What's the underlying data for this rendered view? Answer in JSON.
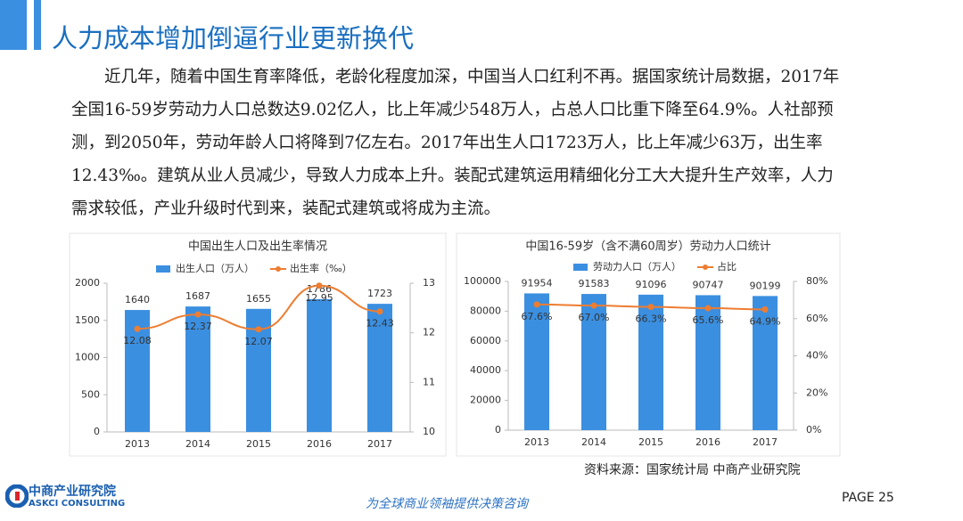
{
  "header": {
    "title": "人力成本增加倒逼行业更新换代"
  },
  "body": {
    "text": "近几年，随着中国生育率降低，老龄化程度加深，中国当人口红利不再。据国家统计局数据，2017年全国16-59岁劳动力人口总数达9.02亿人，比上年减少548万人，占总人口比重下降至64.9%。人社部预测，到2050年，劳动年龄人口将降到7亿左右。2017年出生人口1723万人，比上年减少63万，出生率12.43‰。建筑从业人员减少，导致人力成本上升。装配式建筑运用精细化分工大大提升生产效率，人力需求较低，产业升级时代到来，装配式建筑或将成为主流。"
  },
  "chart_data": [
    {
      "type": "combo",
      "title": "中国出生人口及出生率情况",
      "categories": [
        "2013",
        "2014",
        "2015",
        "2016",
        "2017"
      ],
      "series": [
        {
          "name": "出生人口（万人）",
          "type": "bar",
          "color": "#3b8fe0",
          "values": [
            1640,
            1687,
            1655,
            1786,
            1723
          ]
        },
        {
          "name": "出生率（‰）",
          "type": "line",
          "axis": "y2",
          "color": "#ed7d31",
          "values": [
            12.08,
            12.37,
            12.07,
            12.95,
            12.43
          ]
        }
      ],
      "ylim": [
        0,
        2000
      ],
      "yticks": [
        0,
        500,
        1000,
        1500,
        2000
      ],
      "y2lim": [
        10,
        13
      ],
      "y2ticks": [
        10,
        11,
        12,
        13
      ]
    },
    {
      "type": "combo",
      "title": "中国16-59岁（含不满60周岁）劳动力人口统计",
      "categories": [
        "2013",
        "2014",
        "2015",
        "2016",
        "2017"
      ],
      "series": [
        {
          "name": "劳动力人口（万人）",
          "type": "bar",
          "color": "#3b8fe0",
          "values": [
            91954,
            91583,
            91096,
            90747,
            90199
          ]
        },
        {
          "name": "占比",
          "type": "line",
          "axis": "y2",
          "color": "#ed7d31",
          "values": [
            67.6,
            67.0,
            66.3,
            65.6,
            64.9
          ],
          "value_labels": [
            "67.6%",
            "67.0%",
            "66.3%",
            "65.6%",
            "64.9%"
          ]
        }
      ],
      "ylim": [
        0,
        100000
      ],
      "yticks": [
        0,
        20000,
        40000,
        60000,
        80000,
        100000
      ],
      "y2lim": [
        0,
        80
      ],
      "y2ticks": [
        {
          "value": 0,
          "label": "0%"
        },
        {
          "value": 20,
          "label": "20%"
        },
        {
          "value": 40,
          "label": "40%"
        },
        {
          "value": 60,
          "label": "60%"
        },
        {
          "value": 80,
          "label": "80%"
        }
      ]
    }
  ],
  "footer": {
    "source": "资料来源：国家统计局 中商产业研究院",
    "logo_cn": "中商产业研究院",
    "logo_en": "ASKCI CONSULTING",
    "slogan": "为全球商业领袖提供决策咨询",
    "page": "PAGE  25"
  }
}
